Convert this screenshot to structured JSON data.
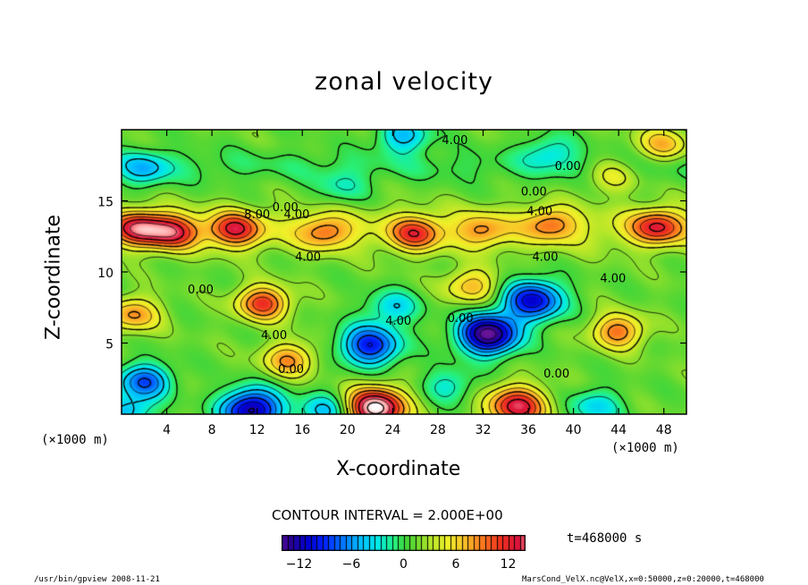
{
  "title": "zonal velocity",
  "chart_data": {
    "type": "heatmap",
    "title": "zonal velocity",
    "xlabel": "X-coordinate",
    "ylabel": "Z-coordinate",
    "x_unit": "(×1000 m)",
    "z_unit": "(×1000 m)",
    "xlim": [
      0,
      50
    ],
    "zlim": [
      0,
      20
    ],
    "x_ticks": [
      4,
      8,
      12,
      16,
      20,
      24,
      28,
      32,
      36,
      40,
      44,
      48
    ],
    "z_ticks": [
      5,
      10,
      15
    ],
    "contour_interval_text": "CONTOUR INTERVAL = 2.000E+00",
    "time_label": "t=468000 s",
    "colorbar": {
      "min": -14,
      "max": 14,
      "ticks": [
        -12,
        -6,
        0,
        6,
        12
      ],
      "tick_labels": [
        "−12",
        "−6",
        "0",
        "6",
        "12"
      ]
    },
    "contour_labels": [
      {
        "text": "4.00",
        "x": 29.5,
        "z": 19.3
      },
      {
        "text": "0.00",
        "x": 39.5,
        "z": 17.5
      },
      {
        "text": "0.00",
        "x": 36.5,
        "z": 15.7
      },
      {
        "text": "4.00",
        "x": 37.0,
        "z": 14.3
      },
      {
        "text": "0.00",
        "x": 14.5,
        "z": 14.6
      },
      {
        "text": "4.00",
        "x": 15.5,
        "z": 14.1
      },
      {
        "text": "8.00",
        "x": 12.0,
        "z": 14.1
      },
      {
        "text": "4.00",
        "x": 16.5,
        "z": 11.1
      },
      {
        "text": "4.00",
        "x": 37.5,
        "z": 11.1
      },
      {
        "text": "4.00",
        "x": 43.5,
        "z": 9.6
      },
      {
        "text": "0.00",
        "x": 7.0,
        "z": 8.8
      },
      {
        "text": "4.00",
        "x": 24.5,
        "z": 6.6
      },
      {
        "text": "0.00",
        "x": 30.0,
        "z": 6.8
      },
      {
        "text": "4.00",
        "x": 13.5,
        "z": 5.6
      },
      {
        "text": "0.00",
        "x": 15.0,
        "z": 3.2
      },
      {
        "text": "0.00",
        "x": 38.5,
        "z": 2.9
      }
    ],
    "features": [
      {
        "x": 1.5,
        "z": 13.1,
        "value": 10
      },
      {
        "x": 4.5,
        "z": 12.8,
        "value": 9
      },
      {
        "x": 10.0,
        "z": 13.0,
        "value": 9
      },
      {
        "x": 18.0,
        "z": 12.8,
        "value": 6
      },
      {
        "x": 26.0,
        "z": 12.7,
        "value": 8
      },
      {
        "x": 32.0,
        "z": 12.9,
        "value": 5
      },
      {
        "x": 38.0,
        "z": 13.4,
        "value": 6
      },
      {
        "x": 47.5,
        "z": 13.2,
        "value": 9
      },
      {
        "x": 12.5,
        "z": 7.8,
        "value": 10
      },
      {
        "x": 1.0,
        "z": 7.0,
        "value": 7
      },
      {
        "x": 44.0,
        "z": 5.8,
        "value": 8
      },
      {
        "x": 22.5,
        "z": 0.4,
        "value": 16
      },
      {
        "x": 35.0,
        "z": 0.5,
        "value": 12
      },
      {
        "x": 31.0,
        "z": 9.0,
        "value": 6
      },
      {
        "x": 14.8,
        "z": 3.8,
        "value": 7
      },
      {
        "x": 48.0,
        "z": 19.0,
        "value": 6
      },
      {
        "x": 43.5,
        "z": 16.8,
        "value": 4
      },
      {
        "x": 32.5,
        "z": 5.6,
        "value": -16
      },
      {
        "x": 36.5,
        "z": 8.0,
        "value": -12
      },
      {
        "x": 22.0,
        "z": 4.8,
        "value": -11
      },
      {
        "x": 2.0,
        "z": 2.3,
        "value": -9
      },
      {
        "x": 11.5,
        "z": 0.3,
        "value": -14
      },
      {
        "x": 0.5,
        "z": 0.2,
        "value": -6
      },
      {
        "x": 18.0,
        "z": 0.2,
        "value": -6
      },
      {
        "x": 24.0,
        "z": 7.5,
        "value": -5
      },
      {
        "x": 25.0,
        "z": 19.6,
        "value": -6
      },
      {
        "x": 2.0,
        "z": 17.3,
        "value": -5
      },
      {
        "x": 38.0,
        "z": 18.5,
        "value": -4
      },
      {
        "x": 42.0,
        "z": 0.5,
        "value": -5
      },
      {
        "x": 29.0,
        "z": 2.0,
        "value": -4
      },
      {
        "x": 19.5,
        "z": 16.0,
        "value": -3
      }
    ]
  },
  "footer": {
    "left": "/usr/bin/gpview  2008-11-21",
    "right": "MarsCond_VelX.nc@VelX,x=0:50000,z=0:20000,t=468000"
  }
}
